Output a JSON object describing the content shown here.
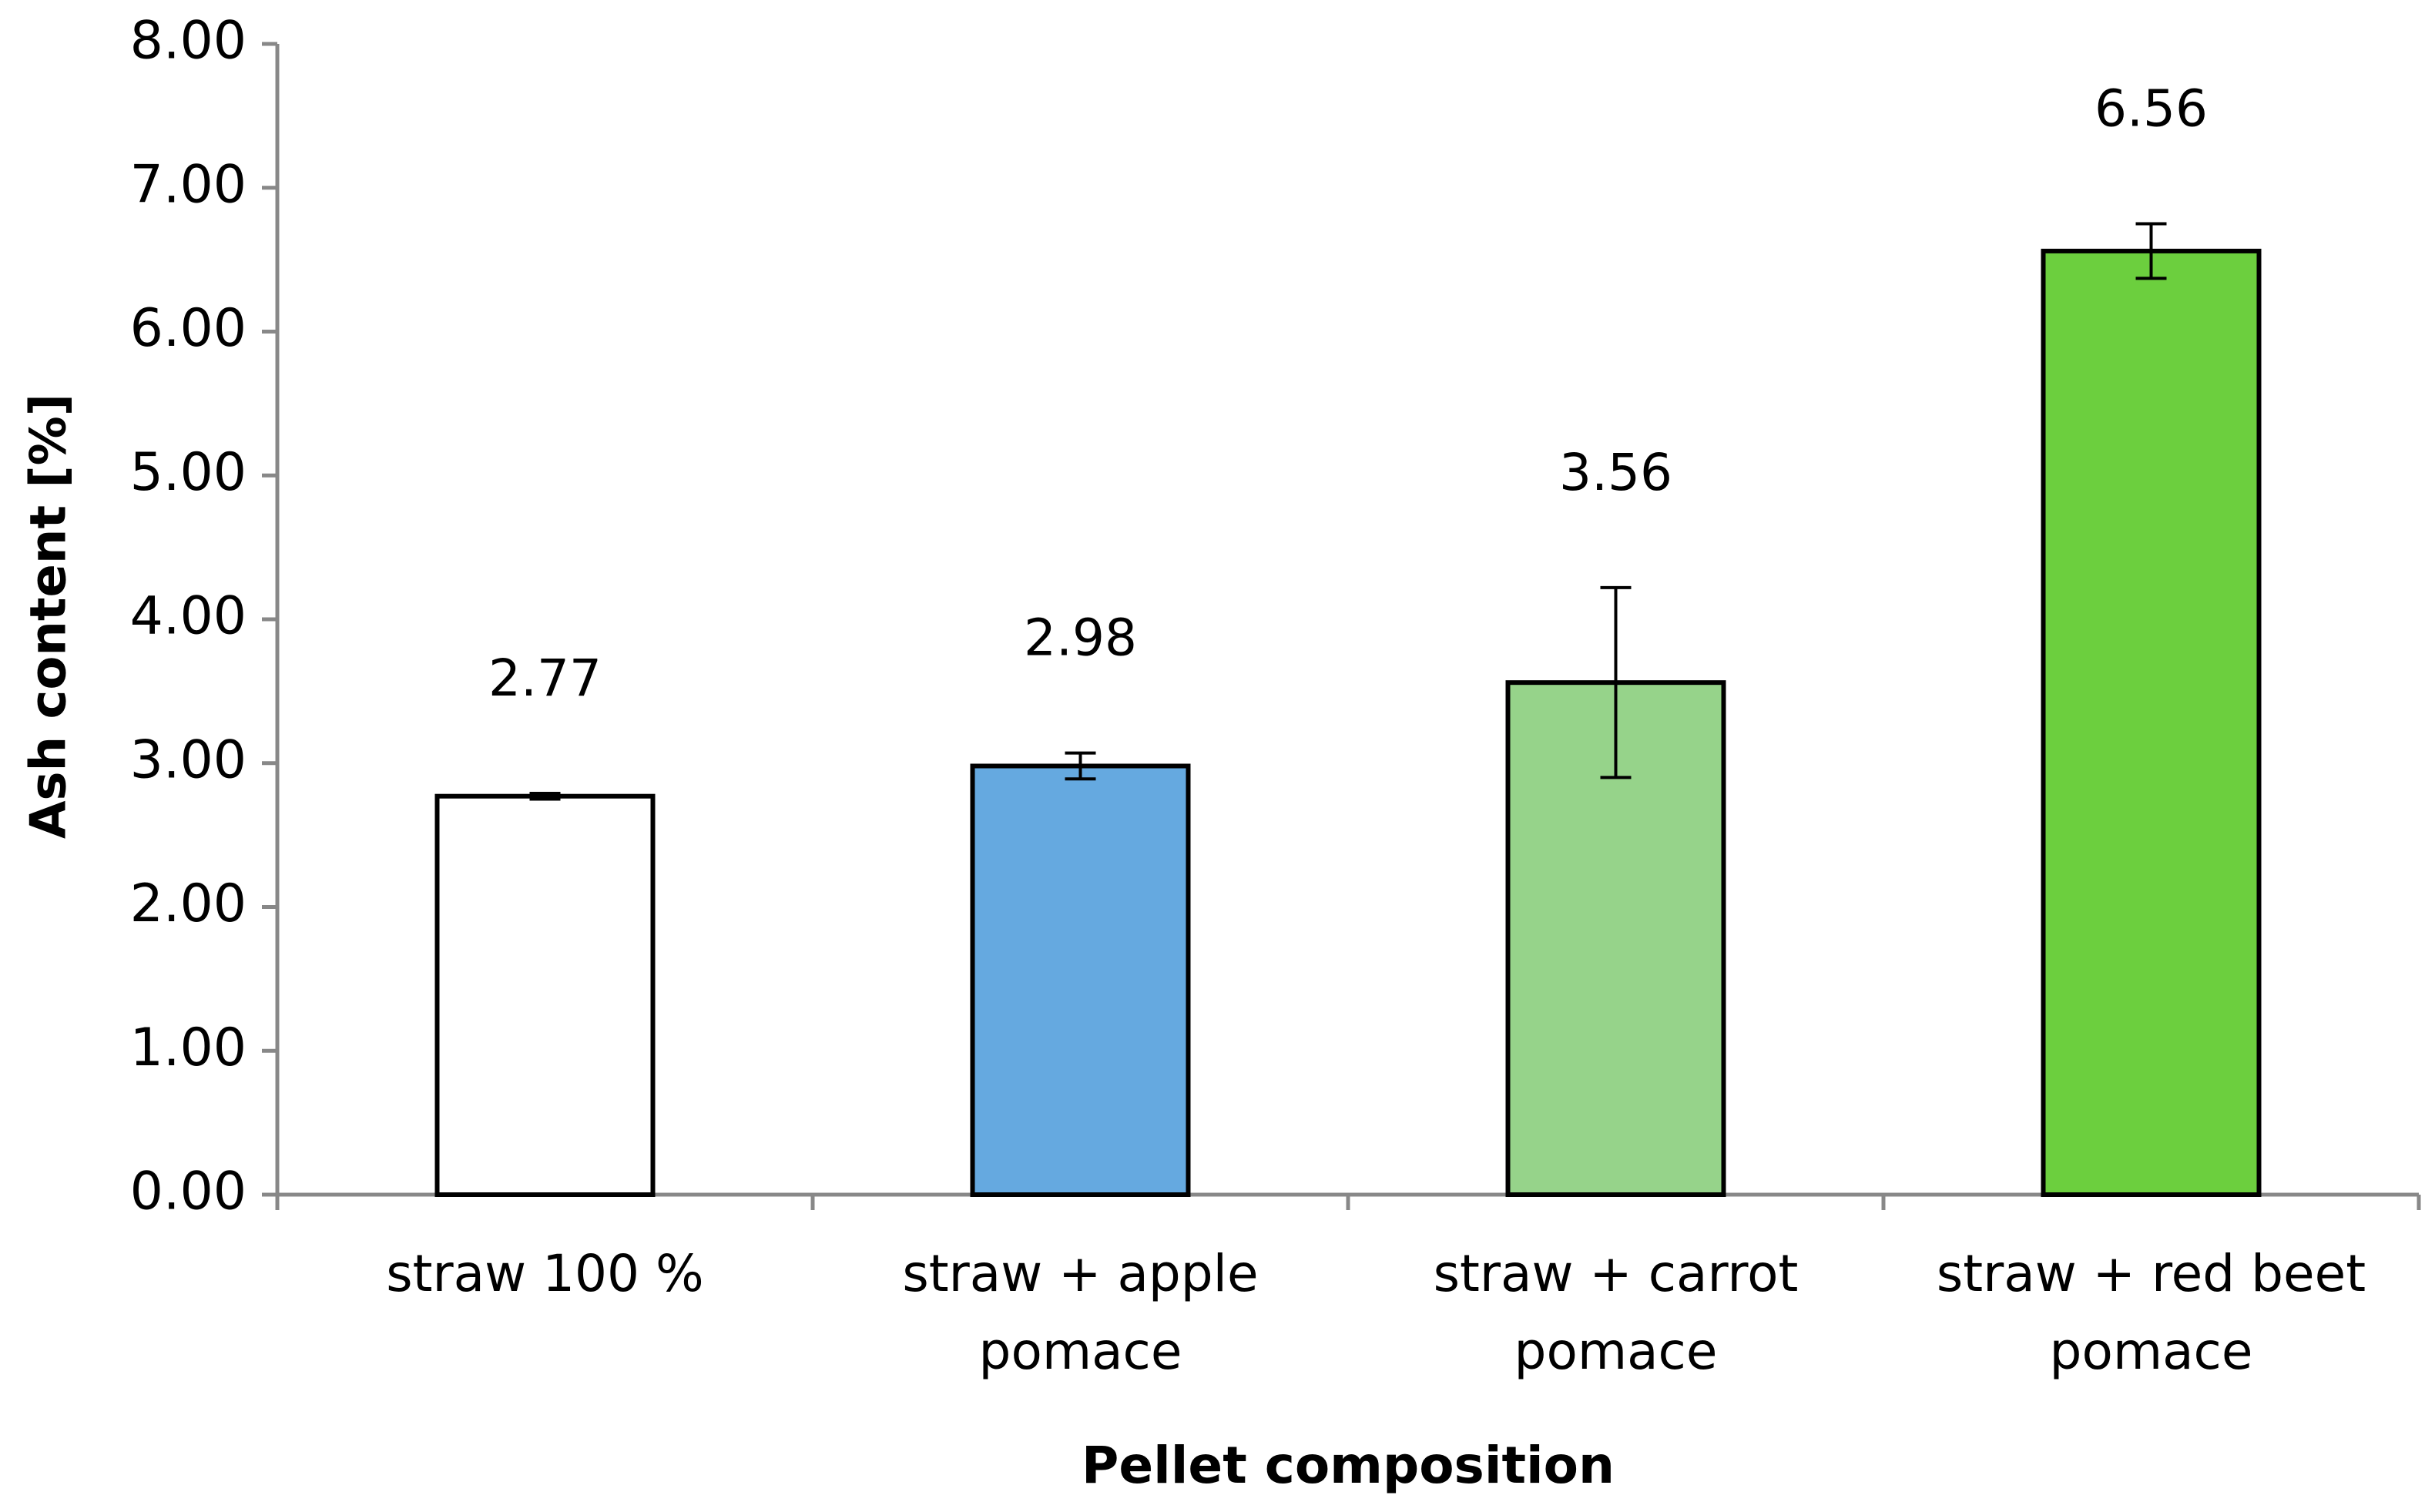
{
  "chart_data": {
    "type": "bar",
    "x_label": "Pellet composition",
    "y_label": "Ash content [%]",
    "categories": [
      "straw 100 %",
      "straw + apple\npomace",
      "straw + carrot\npomace",
      "straw + red beet\npomace"
    ],
    "values": [
      2.77,
      2.98,
      3.56,
      6.56
    ],
    "errors": [
      0.02,
      0.09,
      0.66,
      0.19
    ],
    "colors": [
      "#ffffff",
      "#65a9e0",
      "#96d38a",
      "#6ccf3e"
    ],
    "ylim": [
      0,
      8
    ],
    "yticks": [
      {
        "value": 0,
        "label": "0.00"
      },
      {
        "value": 1,
        "label": "1.00"
      },
      {
        "value": 2,
        "label": "2.00"
      },
      {
        "value": 3,
        "label": "3.00"
      },
      {
        "value": 4,
        "label": "4.00"
      },
      {
        "value": 5,
        "label": "5.00"
      },
      {
        "value": 6,
        "label": "6.00"
      },
      {
        "value": 7,
        "label": "7.00"
      },
      {
        "value": 8,
        "label": "8.00"
      }
    ],
    "grid": false
  }
}
